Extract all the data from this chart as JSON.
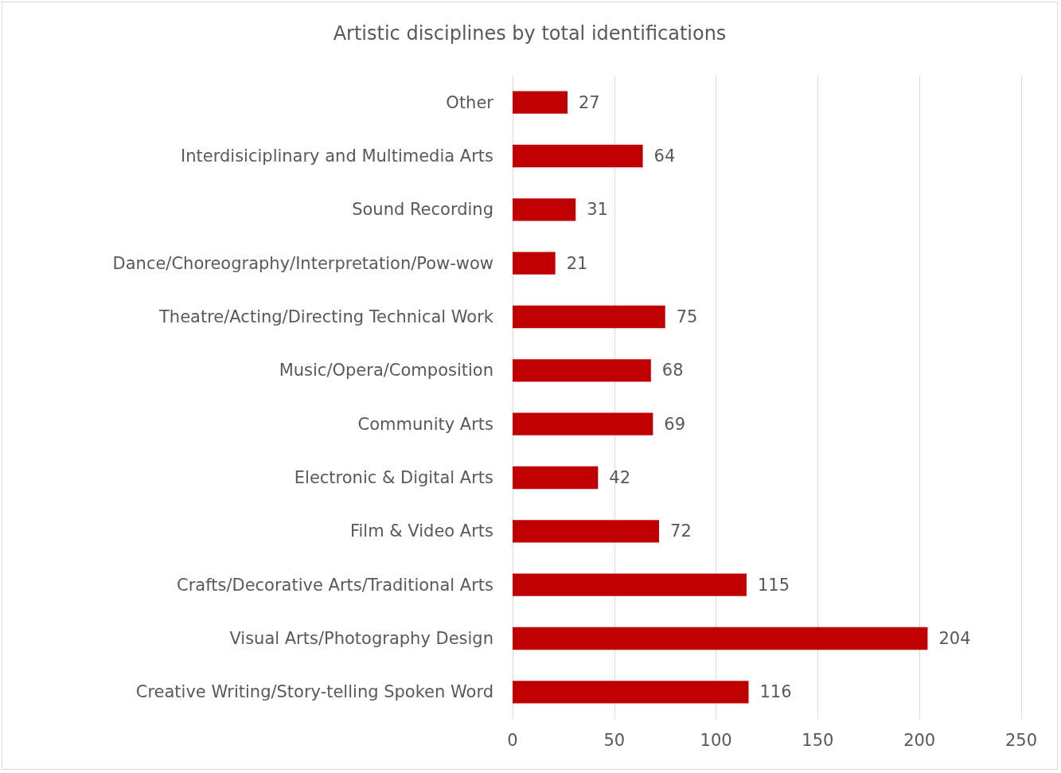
{
  "chart_data": {
    "type": "bar",
    "orientation": "horizontal",
    "title": "Artistic disciplines by total identifications",
    "categories": [
      "Other",
      "Interdisiciplinary and Multimedia Arts",
      "Sound Recording",
      "Dance/Choreography/Interpretation/Pow-wow",
      "Theatre/Acting/Directing Technical Work",
      "Music/Opera/Composition",
      "Community Arts",
      "Electronic & Digital Arts",
      "Film & Video Arts",
      "Crafts/Decorative Arts/Traditional Arts",
      "Visual Arts/Photography Design",
      "Creative Writing/Story-telling Spoken Word"
    ],
    "values": [
      27,
      64,
      31,
      21,
      75,
      68,
      69,
      42,
      72,
      115,
      204,
      116
    ],
    "color": "#c00000",
    "xlim": [
      0,
      250
    ],
    "xticks": [
      0,
      50,
      100,
      150,
      200,
      250
    ],
    "grid": "x",
    "data_labels": true
  }
}
